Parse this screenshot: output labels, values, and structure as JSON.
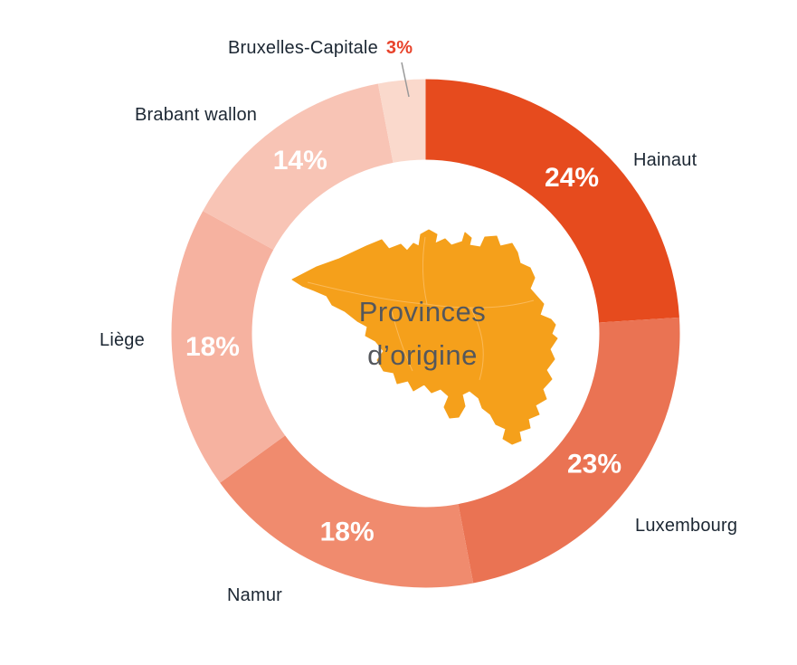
{
  "chart_data": {
    "type": "pie",
    "subtype": "donut",
    "title": "Provinces d'origine",
    "center_label_lines": [
      "Provinces",
      "d’origine"
    ],
    "unit": "%",
    "direction": "clockwise",
    "start_angle_deg": 0,
    "legend_position": "around",
    "categories": [
      "Hainaut",
      "Luxembourg",
      "Namur",
      "Liège",
      "Brabant wallon",
      "Bruxelles-Capitale"
    ],
    "values": [
      24,
      23,
      18,
      18,
      14,
      3
    ],
    "slices": [
      {
        "label": "Hainaut",
        "value": 24,
        "value_label": "24%",
        "color": "#E64B1E",
        "value_inside": true
      },
      {
        "label": "Luxembourg",
        "value": 23,
        "value_label": "23%",
        "color": "#EA7353",
        "value_inside": true
      },
      {
        "label": "Namur",
        "value": 18,
        "value_label": "18%",
        "color": "#F08B6E",
        "value_inside": true
      },
      {
        "label": "Liège",
        "value": 18,
        "value_label": "18%",
        "color": "#F6B2A0",
        "value_inside": true
      },
      {
        "label": "Brabant wallon",
        "value": 14,
        "value_label": "14%",
        "color": "#F8C4B5",
        "value_inside": true
      },
      {
        "label": "Bruxelles-Capitale",
        "value": 3,
        "value_label": "3%",
        "color": "#FAD9CC",
        "value_inside": false
      }
    ]
  },
  "icons": {
    "center": "belgium-map-icon"
  },
  "colors": {
    "background": "#FFFFFF",
    "map_fill": "#F5A01B",
    "center_text": "#54575C",
    "label_text": "#1C2733",
    "outside_value_text": "#E8432B",
    "inside_value_text": "#FFFFFF",
    "leader_line": "#999999"
  }
}
